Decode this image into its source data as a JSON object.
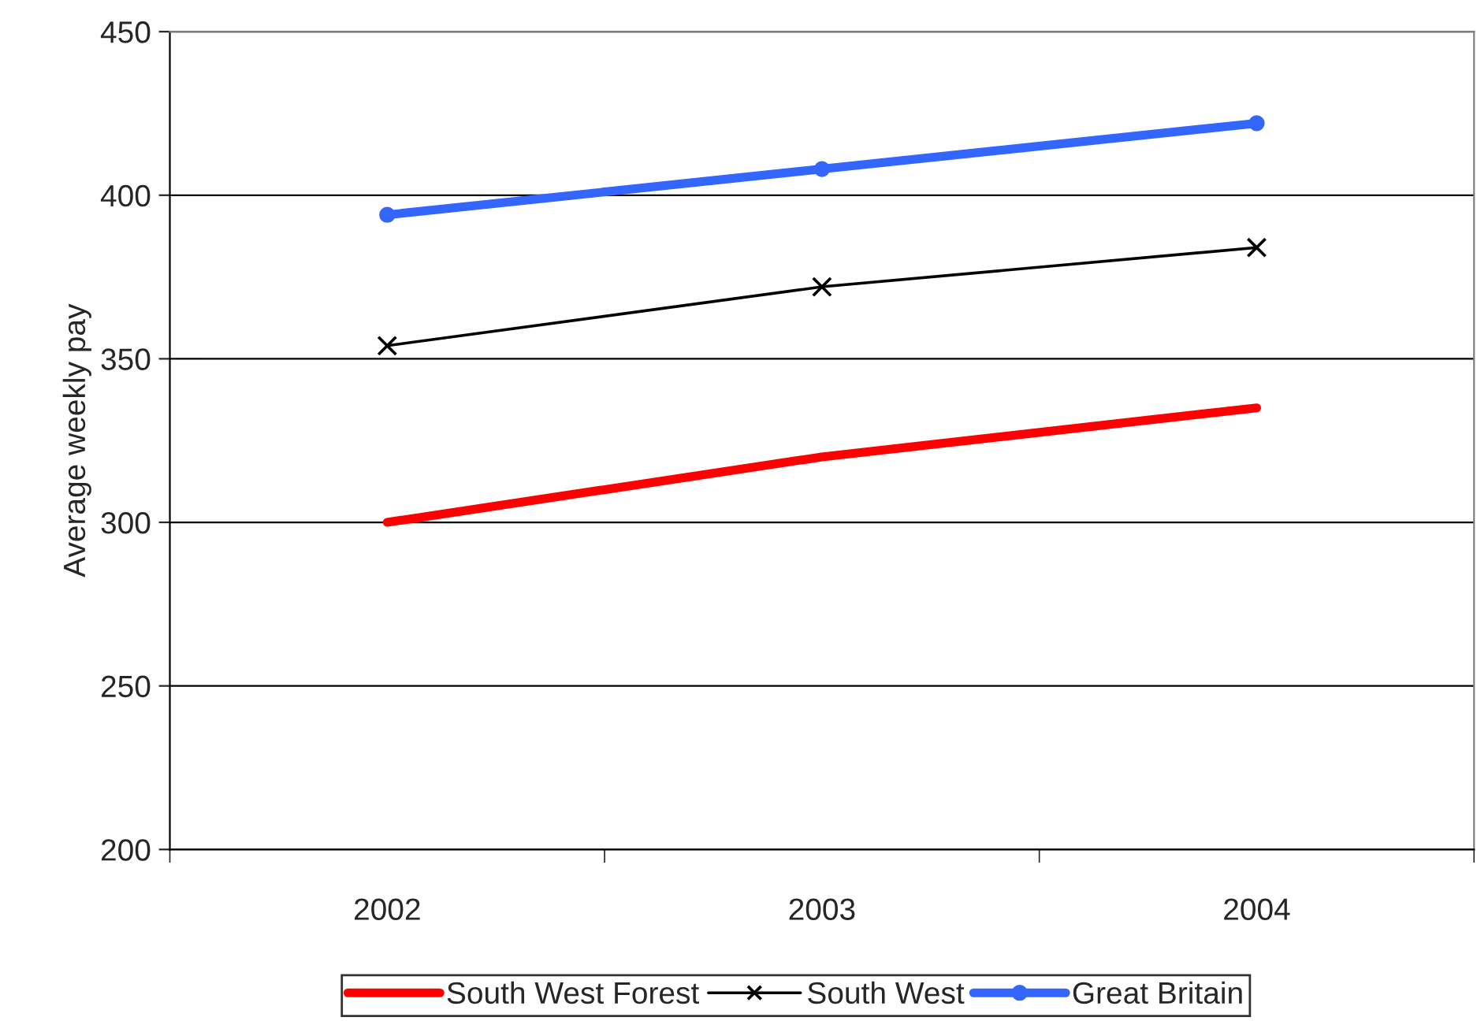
{
  "chart_data": {
    "type": "line",
    "ylabel": "Average weekly pay",
    "categories": [
      "2002",
      "2003",
      "2004"
    ],
    "series": [
      {
        "name": "South West Forest",
        "color": "#ff0000",
        "values": [
          300,
          320,
          335
        ],
        "marker": "none"
      },
      {
        "name": "South West",
        "color": "#000000",
        "values": [
          354,
          372,
          384
        ],
        "marker": "cross"
      },
      {
        "name": "Great Britain",
        "color": "#3366ff",
        "values": [
          394,
          408,
          422
        ],
        "marker": "circle"
      }
    ],
    "ylim": [
      200,
      450
    ],
    "yticks": [
      200,
      250,
      300,
      350,
      400,
      450
    ],
    "grid": "y",
    "legend": "bottom"
  }
}
